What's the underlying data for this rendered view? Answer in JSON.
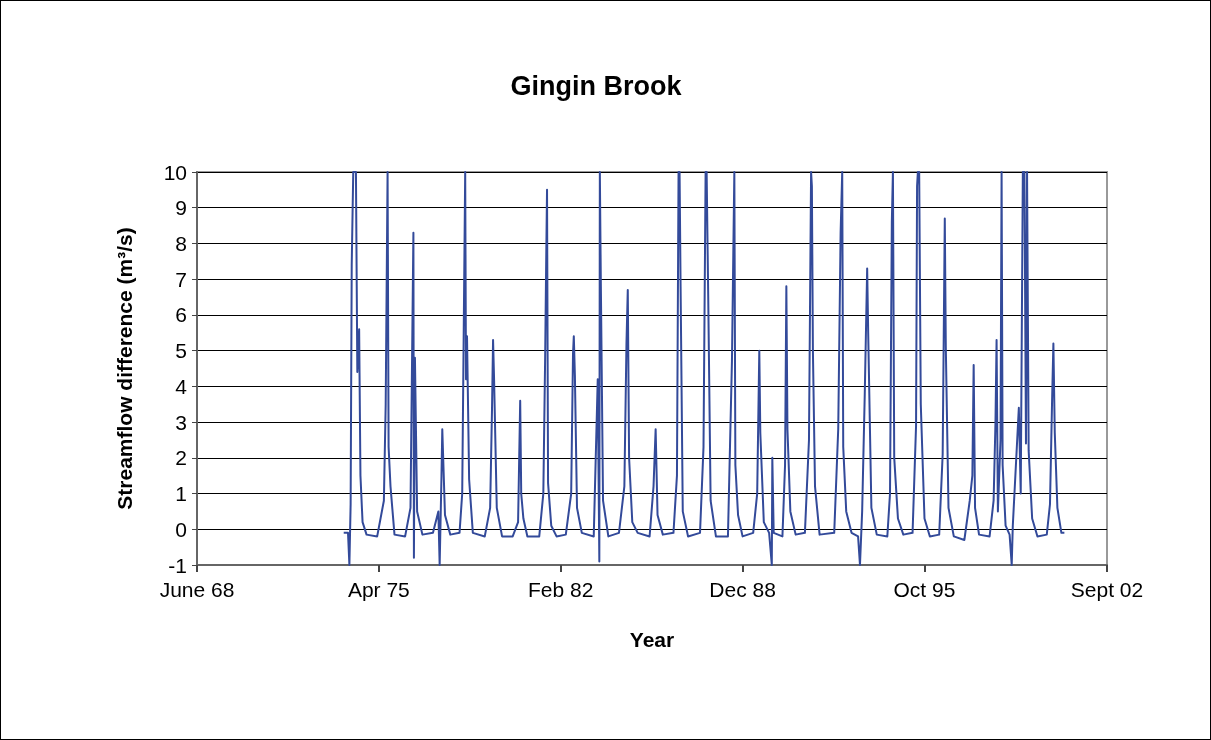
{
  "chart_data": {
    "type": "line",
    "title": "Gingin Brook",
    "xlabel": "Year",
    "ylabel": "Streamflow difference (m³/s)",
    "xlim": [
      "1968-06-01",
      "2002-09-01"
    ],
    "xticks": [
      {
        "value": "1968-06-01",
        "label": "June 68"
      },
      {
        "value": "1975-04-06",
        "label": "Apr 75"
      },
      {
        "value": "1982-02-08",
        "label": "Feb 82"
      },
      {
        "value": "1988-12-13",
        "label": "Dec 88"
      },
      {
        "value": "1995-10-18",
        "label": "Oct 95"
      },
      {
        "value": "2002-09-01",
        "label": "Sept 02"
      }
    ],
    "ylim": [
      -1,
      10
    ],
    "yticks": [
      -1,
      0,
      1,
      2,
      3,
      4,
      5,
      6,
      7,
      8,
      9,
      10
    ],
    "grid": "y",
    "series": [
      {
        "color": "#334a9a",
        "x": [
          "1973-12-09",
          "1974-02-06",
          "1974-02-25",
          "1974-03-14",
          "1974-03-29",
          "1974-04-19",
          "1974-05-26",
          "1974-06-14",
          "1974-07-09",
          "1974-07-27",
          "1974-08-25",
          "1974-10-19",
          "1975-03-14",
          "1975-06-14",
          "1975-07-09",
          "1975-08-04",
          "1975-08-18",
          "1975-09-13",
          "1975-11-07",
          "1976-04-01",
          "1976-06-14",
          "1976-07-24",
          "1976-07-31",
          "1976-08-14",
          "1976-09-13",
          "1976-11-25",
          "1977-04-19",
          "1977-07-02",
          "1977-07-20",
          "1977-08-14",
          "1977-08-25",
          "1977-10-01",
          "1977-12-13",
          "1978-04-19",
          "1978-05-26",
          "1978-07-06",
          "1978-07-17",
          "1978-07-31",
          "1978-08-29",
          "1978-10-19",
          "1979-04-01",
          "1979-06-14",
          "1979-07-09",
          "1979-07-24",
          "1979-08-07",
          "1979-09-13",
          "1979-11-25",
          "1980-04-19",
          "1980-07-02",
          "1980-07-31",
          "1980-08-14",
          "1980-09-13",
          "1980-11-07",
          "1981-04-19",
          "1981-06-14",
          "1981-07-09",
          "1981-07-24",
          "1981-08-04",
          "1981-08-18",
          "1981-10-01",
          "1981-12-13",
          "1982-04-19",
          "1982-07-02",
          "1982-07-27",
          "1982-08-07",
          "1982-08-22",
          "1982-09-20",
          "1982-11-25",
          "1983-05-08",
          "1983-07-02",
          "1983-07-24",
          "1983-07-31",
          "1983-08-14",
          "1983-09-13",
          "1983-11-25",
          "1984-04-19",
          "1984-07-02",
          "1984-07-31",
          "1984-08-18",
          "1984-09-05",
          "1984-10-19",
          "1985-01-01",
          "1985-06-14",
          "1985-08-07",
          "1985-09-05",
          "1985-10-01",
          "1985-12-13",
          "1986-05-08",
          "1986-06-25",
          "1986-07-17",
          "1986-07-31",
          "1986-08-14",
          "1986-09-13",
          "1986-11-25",
          "1987-05-08",
          "1987-06-25",
          "1987-07-24",
          "1987-08-07",
          "1987-08-29",
          "1987-10-01",
          "1987-12-13",
          "1988-05-26",
          "1988-07-20",
          "1988-08-22",
          "1988-09-05",
          "1988-10-12",
          "1988-12-13",
          "1989-05-08",
          "1989-07-02",
          "1989-07-31",
          "1989-08-14",
          "1989-10-01",
          "1989-12-13",
          "1990-01-19",
          "1990-01-26",
          "1990-02-14",
          "1990-06-14",
          "1990-07-20",
          "1990-08-07",
          "1990-08-22",
          "1990-10-01",
          "1990-12-13",
          "1991-04-19",
          "1991-06-14",
          "1991-07-13",
          "1991-07-24",
          "1991-08-07",
          "1991-09-05",
          "1991-11-07",
          "1992-05-26",
          "1992-07-20",
          "1992-08-22",
          "1992-09-13",
          "1992-09-27",
          "1992-11-07",
          "1993-01-19",
          "1993-04-19",
          "1993-05-15",
          "1993-06-14",
          "1993-07-20",
          "1993-08-22",
          "1993-09-05",
          "1993-10-19",
          "1994-01-01",
          "1994-05-26",
          "1994-07-02",
          "1994-07-27",
          "1994-08-11",
          "1994-08-29",
          "1994-10-19",
          "1995-01-01",
          "1995-05-08",
          "1995-06-25",
          "1995-07-09",
          "1995-07-20",
          "1995-08-07",
          "1995-08-29",
          "1995-10-19",
          "1996-01-01",
          "1996-05-08",
          "1996-06-25",
          "1996-07-24",
          "1996-08-07",
          "1996-09-13",
          "1996-11-25",
          "1997-04-19",
          "1997-07-02",
          "1997-08-07",
          "1997-08-25",
          "1997-09-13",
          "1997-11-07",
          "1998-04-01",
          "1998-05-26",
          "1998-06-21",
          "1998-07-06",
          "1998-07-24",
          "1998-08-29",
          "1998-09-13",
          "1998-09-27",
          "1998-11-07",
          "1999-01-01",
          "1999-01-30",
          "1999-02-14",
          "1999-05-08",
          "1999-06-03",
          "1999-07-02",
          "1999-07-24",
          "1999-08-14",
          "1999-08-29",
          "1999-09-20",
          "1999-11-07",
          "2000-01-19",
          "2000-05-26",
          "2000-07-09",
          "2000-08-07",
          "2000-08-25",
          "2000-09-13",
          "2000-10-19",
          "2000-12-13",
          "2001-01-23"
        ],
        "values": [
          -0.1,
          -0.1,
          -1,
          0.7,
          7.4,
          10,
          10,
          4.4,
          5.6,
          1.5,
          0.2,
          -0.15,
          -0.2,
          0.8,
          3.5,
          10,
          2.3,
          1.2,
          -0.15,
          -0.2,
          0.6,
          8.3,
          -0.8,
          4.8,
          0.5,
          -0.15,
          -0.1,
          0.5,
          -1,
          1.5,
          2.8,
          0.4,
          -0.15,
          -0.1,
          1.0,
          10,
          4.2,
          5.4,
          1.4,
          -0.1,
          -0.2,
          0.6,
          3.3,
          5.3,
          4.2,
          0.6,
          -0.2,
          -0.2,
          0.2,
          3.6,
          1.0,
          0.3,
          -0.2,
          -0.2,
          1.0,
          4.8,
          7.6,
          9.5,
          1.3,
          0.1,
          -0.2,
          -0.15,
          1.0,
          4.9,
          5.4,
          4.3,
          0.6,
          -0.1,
          -0.2,
          4.2,
          -0.9,
          10,
          6.8,
          0.8,
          -0.2,
          -0.1,
          1.2,
          5.2,
          6.7,
          2.0,
          0.2,
          -0.1,
          -0.2,
          1.2,
          2.8,
          0.4,
          -0.15,
          -0.1,
          1.5,
          10,
          10,
          6.8,
          0.5,
          -0.2,
          -0.1,
          2.3,
          10,
          10,
          6.5,
          0.8,
          -0.2,
          -0.2,
          4.7,
          10,
          1.8,
          0.4,
          -0.2,
          -0.1,
          1.0,
          5.0,
          2.7,
          0.2,
          -0.1,
          -1,
          2.0,
          -0.1,
          -0.2,
          1.8,
          6.8,
          2.8,
          0.5,
          -0.15,
          -0.1,
          2.5,
          10,
          9.6,
          5.0,
          1.2,
          -0.15,
          -0.1,
          2.8,
          8.3,
          10,
          2.3,
          0.5,
          -0.1,
          -0.2,
          -1,
          0.5,
          3.8,
          7.3,
          5.5,
          0.6,
          -0.15,
          -0.2,
          1.0,
          8.6,
          10,
          2.0,
          0.3,
          -0.15,
          -0.1,
          2.9,
          9.6,
          10,
          10,
          3.5,
          0.3,
          -0.2,
          -0.15,
          2.1,
          8.7,
          5.1,
          0.6,
          -0.2,
          -0.3,
          0.8,
          1.5,
          4.6,
          0.6,
          -0.15,
          -0.2,
          0.8,
          3.0,
          5.3,
          0.5,
          2.5,
          10,
          1.8,
          0.1,
          -0.15,
          -1,
          0.1,
          3.4,
          1.0,
          10,
          10,
          2.4,
          10,
          2.2,
          0.3,
          -0.2,
          -0.15,
          0.7,
          3.6,
          5.2,
          2.7,
          0.6,
          -0.1,
          -0.1
        ]
      }
    ]
  }
}
